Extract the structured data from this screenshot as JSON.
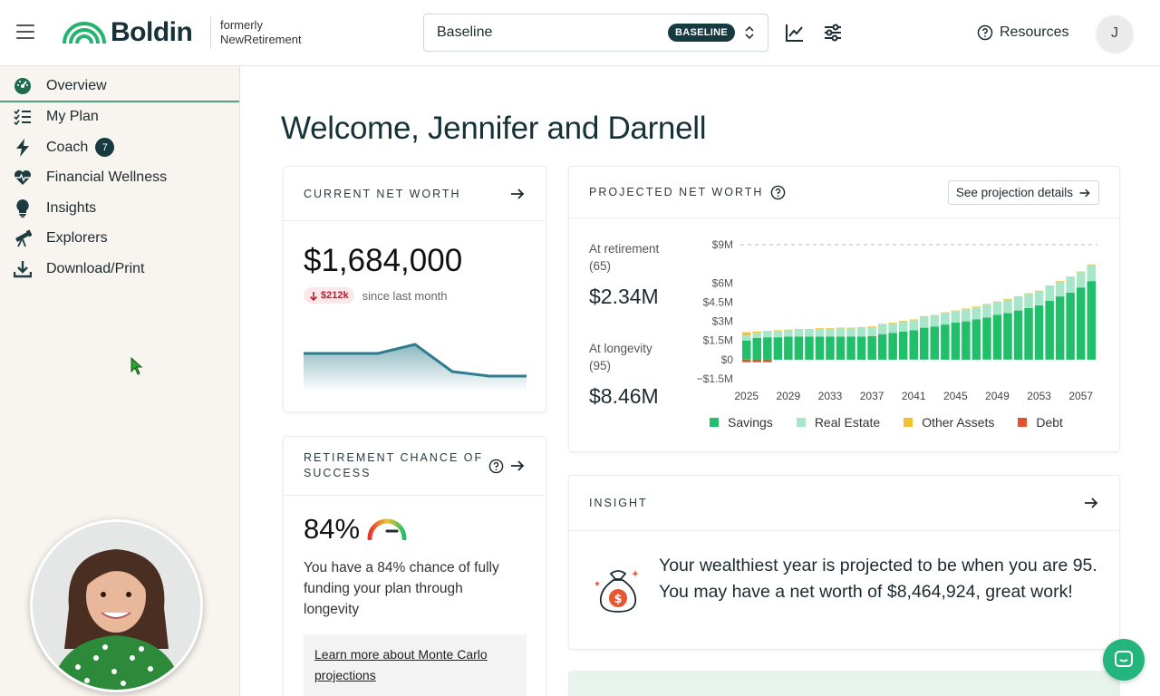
{
  "topbar": {
    "logo_text": "Boldin",
    "formerly_line1": "formerly",
    "formerly_line2": "NewRetirement",
    "scenario_name": "Baseline",
    "scenario_badge": "BASELINE",
    "resources_label": "Resources",
    "avatar_initial": "J"
  },
  "sidebar": {
    "items": [
      {
        "label": "Overview",
        "icon": "dashboard-icon"
      },
      {
        "label": "My Plan",
        "icon": "checklist-icon"
      },
      {
        "label": "Coach",
        "icon": "lightning-icon",
        "badge": "7"
      },
      {
        "label": "Financial Wellness",
        "icon": "heartbeat-icon"
      },
      {
        "label": "Insights",
        "icon": "lightbulb-icon"
      },
      {
        "label": "Explorers",
        "icon": "telescope-icon"
      },
      {
        "label": "Download/Print",
        "icon": "download-icon"
      }
    ]
  },
  "main": {
    "welcome": "Welcome, Jennifer and Darnell",
    "net_worth": {
      "title": "CURRENT NET WORTH",
      "value": "$1,684,000",
      "change": "$212k",
      "change_direction": "down",
      "change_suffix": "since last month",
      "sparkline": [
        1720,
        1720,
        1720,
        1760,
        1640,
        1620,
        1620
      ],
      "accent_color": "#2e7d8c"
    },
    "retirement": {
      "title_line1": "RETIREMENT CHANCE OF",
      "title_line2": "SUCCESS",
      "percent": "84%",
      "gauge_value": 0.84,
      "description": "You have a 84% chance of fully funding your plan through longevity",
      "learn_link_line1": "Learn more about Monte Carlo",
      "learn_link_line2": "projections"
    },
    "projected": {
      "title": "PROJECTED NET WORTH",
      "details_button": "See projection details",
      "retirement_label_line1": "At retirement",
      "retirement_label_line2": "(65)",
      "retirement_value": "$2.34M",
      "longevity_label_line1": "At longevity",
      "longevity_label_line2": "(95)",
      "longevity_value": "$8.46M"
    },
    "insight": {
      "title": "INSIGHT",
      "text": "Your wealthiest year is projected to be when you are 95. You may have a net worth of $8,464,924, great work!"
    }
  },
  "chart_data": {
    "type": "bar",
    "stacked": true,
    "title": "",
    "xlabel": "",
    "ylabel": "",
    "x_tick_labels": [
      "2025",
      "2029",
      "2033",
      "2037",
      "2041",
      "2045",
      "2049",
      "2053",
      "2057"
    ],
    "y_tick_labels": [
      "$9M",
      "$6M",
      "$4.5M",
      "$3M",
      "$1.5M",
      "$0",
      "−$1.5M"
    ],
    "y_ticks": [
      9,
      6,
      4.5,
      3,
      1.5,
      0,
      -1.5
    ],
    "ylim": [
      -1.5,
      9
    ],
    "grid": "dashed at $9M",
    "legend_position": "bottom",
    "categories": [
      "2025",
      "2026",
      "2027",
      "2028",
      "2029",
      "2030",
      "2031",
      "2032",
      "2033",
      "2034",
      "2035",
      "2036",
      "2037",
      "2038",
      "2039",
      "2040",
      "2041",
      "2042",
      "2043",
      "2044",
      "2045",
      "2046",
      "2047",
      "2048",
      "2049",
      "2050",
      "2051",
      "2052",
      "2053",
      "2054",
      "2055",
      "2056",
      "2057",
      "2058"
    ],
    "series": [
      {
        "name": "Savings",
        "color": "#22bf6a",
        "values": [
          1.5,
          1.7,
          1.75,
          1.75,
          1.8,
          1.8,
          1.8,
          1.8,
          1.8,
          1.8,
          1.8,
          1.8,
          1.85,
          2.0,
          2.1,
          2.2,
          2.3,
          2.5,
          2.6,
          2.75,
          2.9,
          3.0,
          3.15,
          3.3,
          3.5,
          3.65,
          3.85,
          4.05,
          4.25,
          4.6,
          4.95,
          5.25,
          5.65,
          6.15
        ]
      },
      {
        "name": "Real Estate",
        "color": "#a8e6c9",
        "values": [
          0.4,
          0.4,
          0.45,
          0.5,
          0.5,
          0.55,
          0.55,
          0.6,
          0.6,
          0.65,
          0.65,
          0.7,
          0.7,
          0.75,
          0.75,
          0.8,
          0.8,
          0.85,
          0.85,
          0.9,
          0.9,
          0.95,
          0.95,
          1.0,
          1.0,
          1.05,
          1.05,
          1.1,
          1.1,
          1.15,
          1.15,
          1.2,
          1.2,
          1.25
        ]
      },
      {
        "name": "Other Assets",
        "color": "#f2c12e",
        "values": [
          0.25,
          0.1,
          0.05,
          0.05,
          0.05,
          0.05,
          0.05,
          0.05,
          0.05,
          0.05,
          0.05,
          0.05,
          0.05,
          0.05,
          0.05,
          0.05,
          0.05,
          0.05,
          0.05,
          0.05,
          0.05,
          0.05,
          0.05,
          0.05,
          0.05,
          0.05,
          0.05,
          0.05,
          0.05,
          0.05,
          0.05,
          0.05,
          0.05,
          0.05
        ]
      },
      {
        "name": "Debt",
        "color": "#e0532d",
        "values": [
          -0.2,
          -0.2,
          -0.2,
          0,
          0,
          0,
          0,
          0,
          0,
          0,
          0,
          0,
          0,
          0,
          0,
          0,
          0,
          0,
          0,
          0,
          0,
          0,
          0,
          0,
          0,
          0,
          0,
          0,
          0,
          0,
          0,
          0,
          0,
          0
        ]
      }
    ]
  }
}
